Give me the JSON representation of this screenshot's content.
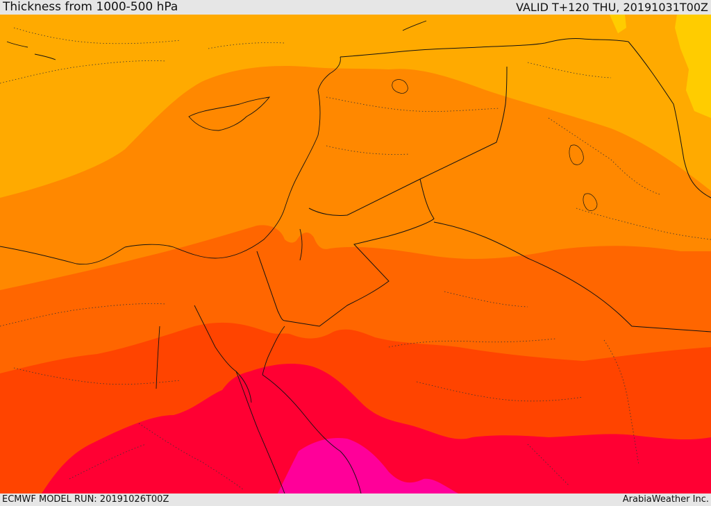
{
  "header": {
    "title": "Thickness from 1000-500 hPa",
    "valid": "VALID T+120 THU, 20191031T00Z"
  },
  "footer": {
    "model_run": "ECMWF MODEL RUN: 20191026T00Z",
    "credit": "ArabiaWeather Inc."
  },
  "colors": {
    "band_1": "#ffcc00",
    "band_2": "#ffaa00",
    "band_3": "#ff8800",
    "band_4": "#ff6600",
    "band_5": "#ff4400",
    "band_6": "#ff0033",
    "band_7": "#ff0099",
    "border": "#111111",
    "admin_border": "#333333"
  }
}
